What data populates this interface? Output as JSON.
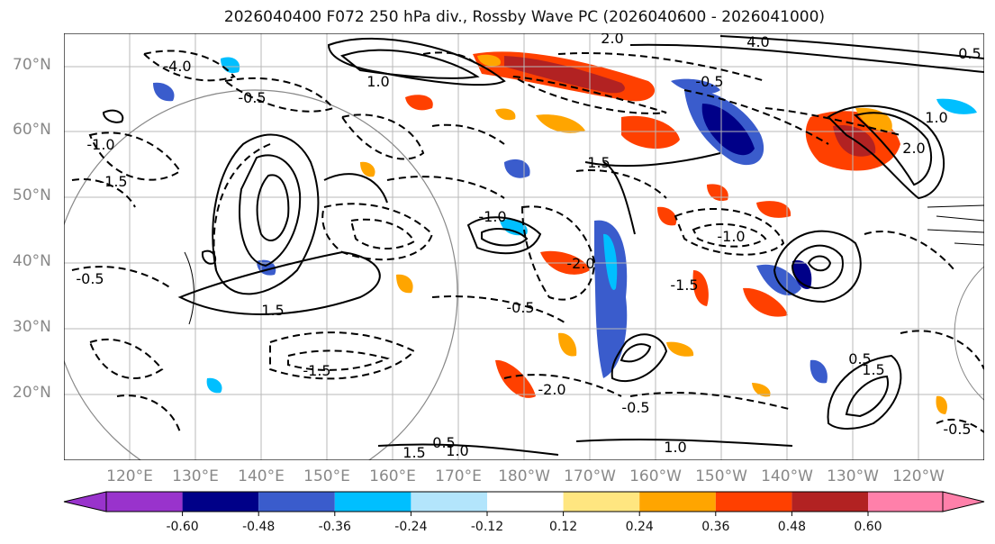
{
  "title": "2026040400 F072 250 hPa div., Rossby Wave PC (2026040600 - 2026041000)",
  "lat_labels": [
    "70°N",
    "60°N",
    "50°N",
    "40°N",
    "30°N",
    "20°N"
  ],
  "lon_labels": [
    "120°E",
    "130°E",
    "140°E",
    "150°E",
    "160°E",
    "170°E",
    "180°W",
    "170°W",
    "160°W",
    "150°W",
    "140°W",
    "130°W",
    "120°W"
  ],
  "contour_labels": [
    "-4.0",
    "-2.0",
    "-2.0",
    "-1.5",
    "-1.5",
    "-1.5",
    "-1.0",
    "-1.0",
    "-1.0",
    "-0.5",
    "-0.5",
    "-0.5",
    "-0.5",
    "-0.5",
    "-0.5",
    "0.5",
    "0.5",
    "1.0",
    "1.0",
    "1.0",
    "1.5",
    "1.5",
    "1.5",
    "2.0",
    "2.0",
    "4.0",
    "0.5",
    "1.0",
    "1.5"
  ],
  "colorbar": {
    "ticks": [
      "-0.60",
      "-0.48",
      "-0.36",
      "-0.24",
      "-0.12",
      "0.12",
      "0.24",
      "0.36",
      "0.48",
      "0.60"
    ],
    "colors": [
      "#9933cc",
      "#000088",
      "#3a5ccc",
      "#00bfff",
      "#b3e5fc",
      "#ffffff",
      "#ffe680",
      "#ffa500",
      "#ff4000",
      "#b22222",
      "#ff80aa"
    ]
  }
}
